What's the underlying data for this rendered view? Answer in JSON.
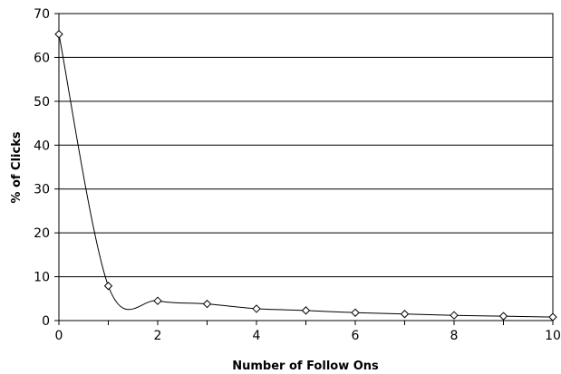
{
  "chart_data": {
    "type": "line",
    "title": "",
    "xlabel": "Number of Follow Ons",
    "ylabel": "% of Clicks",
    "xlim": [
      0,
      10
    ],
    "ylim": [
      0,
      70
    ],
    "x_ticks": [
      "0",
      "2",
      "4",
      "6",
      "8",
      "10"
    ],
    "y_ticks": [
      "0",
      "10",
      "20",
      "30",
      "40",
      "50",
      "60",
      "70"
    ],
    "grid": "horizontal",
    "legend": "none",
    "series": [
      {
        "x": [
          0,
          1,
          2,
          3,
          4,
          5,
          6,
          7,
          8,
          9,
          10
        ],
        "y": [
          65.3,
          7.9,
          4.5,
          3.8,
          2.7,
          2.3,
          1.8,
          1.5,
          1.2,
          1.0,
          0.8
        ],
        "marker": "diamond",
        "smooth": true,
        "color": "#000000"
      }
    ]
  }
}
